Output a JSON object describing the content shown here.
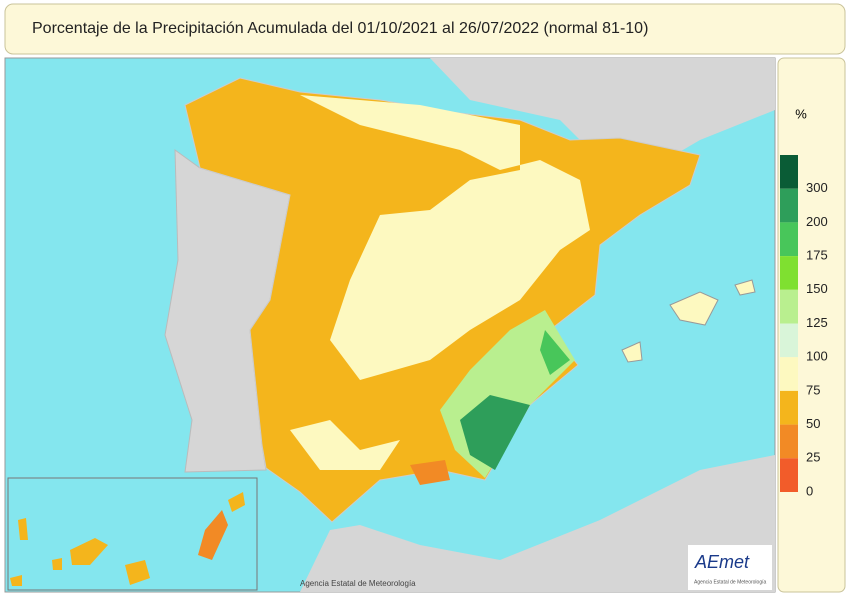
{
  "title": "Porcentaje de la Precipitación Acumulada del 01/10/2021 al 26/07/2022 (normal 81-10)",
  "legend": {
    "unit": "%",
    "labels": [
      300,
      200,
      175,
      150,
      125,
      100,
      75,
      50,
      25,
      0
    ],
    "colors": [
      "#0a5c36",
      "#2e9e5a",
      "#48c65a",
      "#7fe030",
      "#b9ef8f",
      "#d9f5d9",
      "#fdf9c0",
      "#f4b51c",
      "#f28a25",
      "#f25c2a"
    ]
  },
  "credit": "Agencia Estatal de Meteorología",
  "logo": {
    "name": "AEmet",
    "subtitle": "Agencia Estatal de Meteorología"
  }
}
